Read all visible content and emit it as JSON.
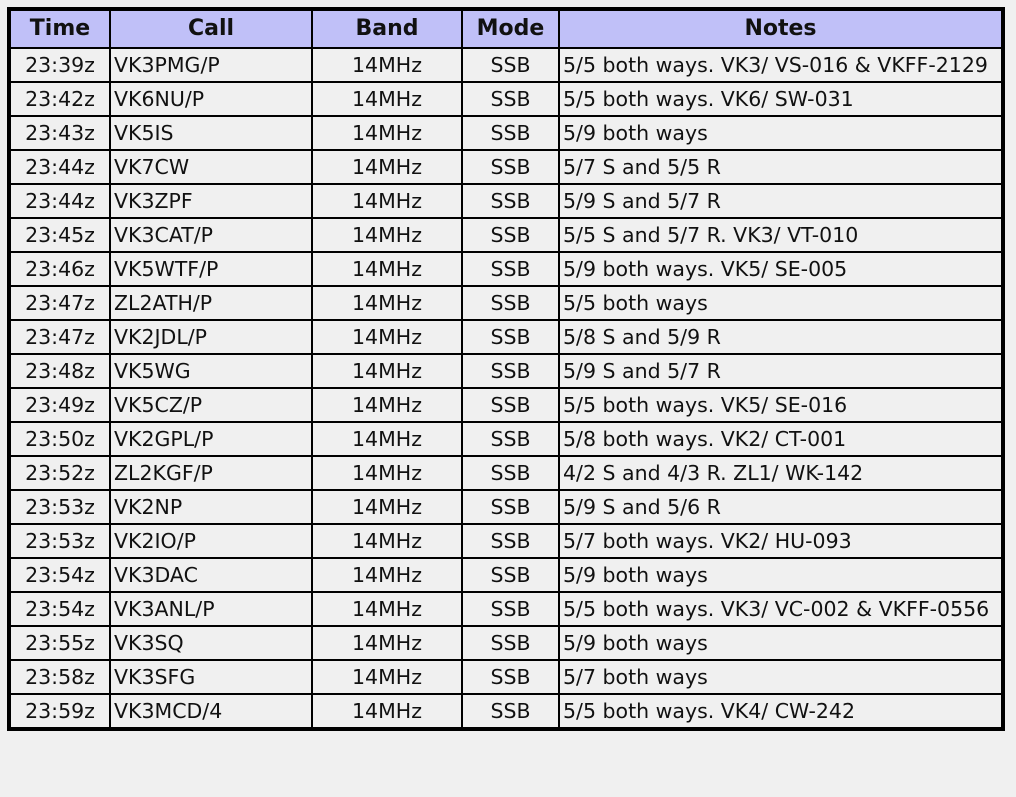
{
  "columns": [
    "Time",
    "Call",
    "Band",
    "Mode",
    "Notes"
  ],
  "rows": [
    [
      "23:39z",
      "VK3PMG/P",
      "14MHz",
      "SSB",
      "5/5 both ways. VK3/ VS-016 & VKFF-2129"
    ],
    [
      "23:42z",
      "VK6NU/P",
      "14MHz",
      "SSB",
      "5/5 both ways. VK6/ SW-031"
    ],
    [
      "23:43z",
      "VK5IS",
      "14MHz",
      "SSB",
      "5/9 both ways"
    ],
    [
      "23:44z",
      "VK7CW",
      "14MHz",
      "SSB",
      "5/7 S and 5/5 R"
    ],
    [
      "23:44z",
      "VK3ZPF",
      "14MHz",
      "SSB",
      "5/9 S and 5/7 R"
    ],
    [
      "23:45z",
      "VK3CAT/P",
      "14MHz",
      "SSB",
      "5/5 S and 5/7 R. VK3/ VT-010"
    ],
    [
      "23:46z",
      "VK5WTF/P",
      "14MHz",
      "SSB",
      "5/9 both ways. VK5/ SE-005"
    ],
    [
      "23:47z",
      "ZL2ATH/P",
      "14MHz",
      "SSB",
      "5/5 both ways"
    ],
    [
      "23:47z",
      "VK2JDL/P",
      "14MHz",
      "SSB",
      "5/8 S and 5/9 R"
    ],
    [
      "23:48z",
      "VK5WG",
      "14MHz",
      "SSB",
      "5/9 S and 5/7 R"
    ],
    [
      "23:49z",
      "VK5CZ/P",
      "14MHz",
      "SSB",
      "5/5 both ways. VK5/ SE-016"
    ],
    [
      "23:50z",
      "VK2GPL/P",
      "14MHz",
      "SSB",
      "5/8 both ways. VK2/ CT-001"
    ],
    [
      "23:52z",
      "ZL2KGF/P",
      "14MHz",
      "SSB",
      "4/2 S and 4/3 R. ZL1/ WK-142"
    ],
    [
      "23:53z",
      "VK2NP",
      "14MHz",
      "SSB",
      "5/9 S and 5/6 R"
    ],
    [
      "23:53z",
      "VK2IO/P",
      "14MHz",
      "SSB",
      "5/7 both ways. VK2/ HU-093"
    ],
    [
      "23:54z",
      "VK3DAC",
      "14MHz",
      "SSB",
      "5/9 both ways"
    ],
    [
      "23:54z",
      "VK3ANL/P",
      "14MHz",
      "SSB",
      "5/5 both ways. VK3/ VC-002 & VKFF-0556"
    ],
    [
      "23:55z",
      "VK3SQ",
      "14MHz",
      "SSB",
      "5/9 both ways"
    ],
    [
      "23:58z",
      "VK3SFG",
      "14MHz",
      "SSB",
      "5/7 both ways"
    ],
    [
      "23:59z",
      "VK3MCD/4",
      "14MHz",
      "SSB",
      "5/5 both ways. VK4/ CW-242"
    ]
  ]
}
